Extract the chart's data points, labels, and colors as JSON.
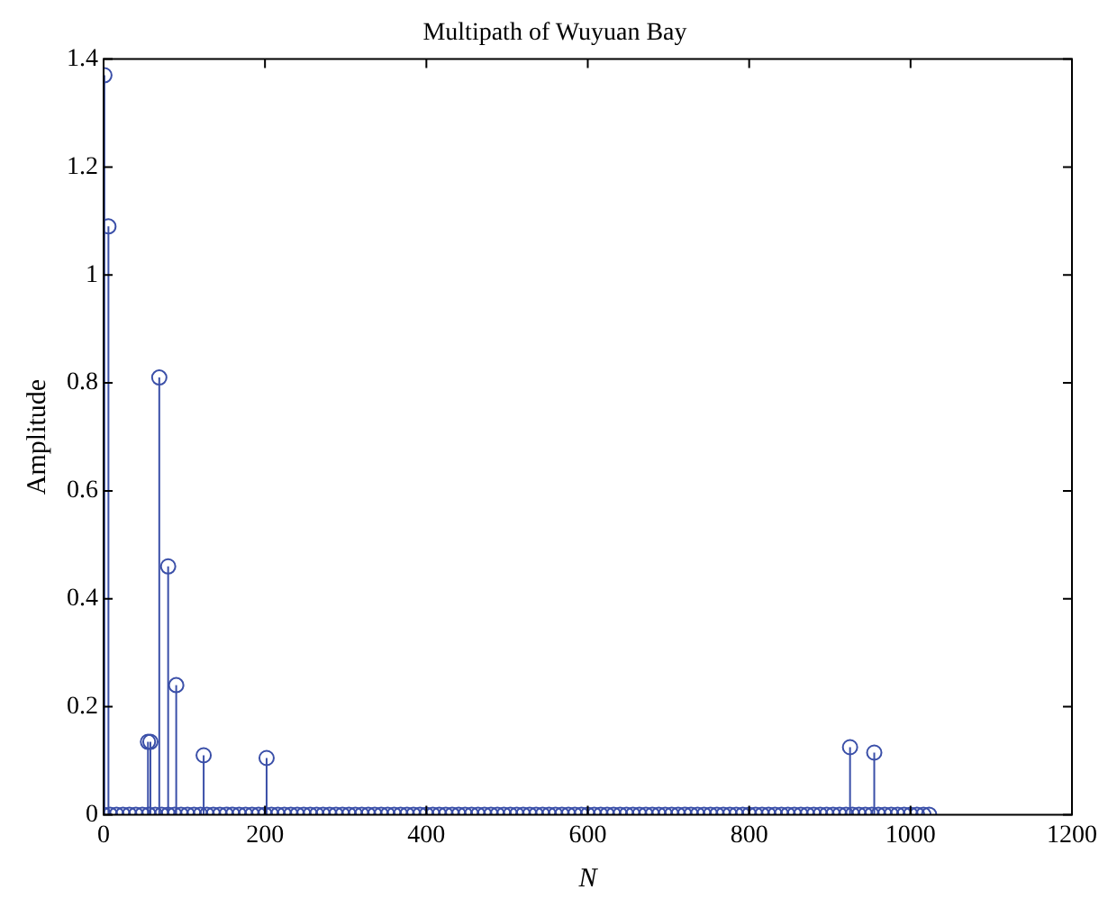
{
  "chart_data": {
    "type": "lollipop",
    "title": "Multipath of Wuyuan Bay",
    "xlabel": "N",
    "ylabel": "Amplitude",
    "xlim": [
      0,
      1200
    ],
    "xticks": [
      0,
      200,
      400,
      600,
      800,
      1000,
      1200
    ],
    "ylim": [
      0,
      1.4
    ],
    "yticks": [
      0,
      0.2,
      0.4,
      0.6,
      0.8,
      1,
      1.2,
      1.4
    ],
    "grid": false,
    "legend": false,
    "marker": "circle",
    "series": [
      {
        "color": "#3a4fa8",
        "x": [
          1,
          6,
          55,
          58,
          69,
          80,
          90,
          124,
          202,
          925,
          955
        ],
        "values": [
          1.37,
          1.09,
          0.135,
          0.135,
          0.81,
          0.46,
          0.24,
          0.11,
          0.105,
          0.125,
          0.115
        ]
      },
      {
        "color": "#3a4fa8",
        "x": [
          0,
          8,
          16,
          24,
          32,
          40,
          48,
          56,
          64,
          72,
          80,
          88,
          96,
          104,
          112,
          120,
          128,
          136,
          144,
          152,
          160,
          168,
          176,
          184,
          192,
          200,
          208,
          216,
          224,
          232,
          240,
          248,
          256,
          264,
          272,
          280,
          288,
          296,
          304,
          312,
          320,
          328,
          336,
          344,
          352,
          360,
          368,
          376,
          384,
          392,
          400,
          408,
          416,
          424,
          432,
          440,
          448,
          456,
          464,
          472,
          480,
          488,
          496,
          504,
          512,
          520,
          528,
          536,
          544,
          552,
          560,
          568,
          576,
          584,
          592,
          600,
          608,
          616,
          624,
          632,
          640,
          648,
          656,
          664,
          672,
          680,
          688,
          696,
          704,
          712,
          720,
          728,
          736,
          744,
          752,
          760,
          768,
          776,
          784,
          792,
          800,
          808,
          816,
          824,
          832,
          840,
          848,
          856,
          864,
          872,
          880,
          888,
          896,
          904,
          912,
          920,
          928,
          936,
          944,
          952,
          960,
          968,
          976,
          984,
          992,
          1000,
          1008,
          1016,
          1023
        ],
        "values": [
          0,
          0,
          0,
          0,
          0,
          0,
          0,
          0,
          0,
          0,
          0,
          0,
          0,
          0,
          0,
          0,
          0,
          0,
          0,
          0,
          0,
          0,
          0,
          0,
          0,
          0,
          0,
          0,
          0,
          0,
          0,
          0,
          0,
          0,
          0,
          0,
          0,
          0,
          0,
          0,
          0,
          0,
          0,
          0,
          0,
          0,
          0,
          0,
          0,
          0,
          0,
          0,
          0,
          0,
          0,
          0,
          0,
          0,
          0,
          0,
          0,
          0,
          0,
          0,
          0,
          0,
          0,
          0,
          0,
          0,
          0,
          0,
          0,
          0,
          0,
          0,
          0,
          0,
          0,
          0,
          0,
          0,
          0,
          0,
          0,
          0,
          0,
          0,
          0,
          0,
          0,
          0,
          0,
          0,
          0,
          0,
          0,
          0,
          0,
          0,
          0,
          0,
          0,
          0,
          0,
          0,
          0,
          0,
          0,
          0,
          0,
          0,
          0,
          0,
          0,
          0,
          0,
          0,
          0,
          0,
          0,
          0,
          0,
          0,
          0,
          0,
          0,
          0,
          0
        ]
      }
    ]
  }
}
